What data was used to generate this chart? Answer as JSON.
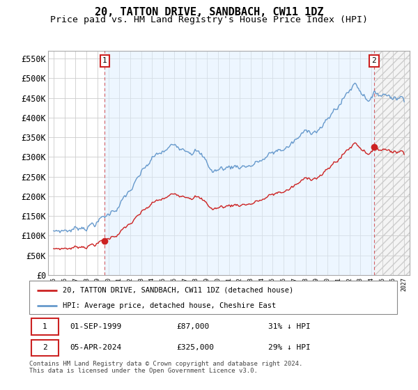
{
  "title": "20, TATTON DRIVE, SANDBACH, CW11 1DZ",
  "subtitle": "Price paid vs. HM Land Registry's House Price Index (HPI)",
  "ylabel_ticks": [
    "£0",
    "£50K",
    "£100K",
    "£150K",
    "£200K",
    "£250K",
    "£300K",
    "£350K",
    "£400K",
    "£450K",
    "£500K",
    "£550K"
  ],
  "ytick_values": [
    0,
    50000,
    100000,
    150000,
    200000,
    250000,
    300000,
    350000,
    400000,
    450000,
    500000,
    550000
  ],
  "ylim": [
    0,
    570000
  ],
  "xlim_start": 1994.5,
  "xlim_end": 2027.5,
  "xtick_years": [
    1995,
    1996,
    1997,
    1998,
    1999,
    2000,
    2001,
    2002,
    2003,
    2004,
    2005,
    2006,
    2007,
    2008,
    2009,
    2010,
    2011,
    2012,
    2013,
    2014,
    2015,
    2016,
    2017,
    2018,
    2019,
    2020,
    2021,
    2022,
    2023,
    2024,
    2025,
    2026,
    2027
  ],
  "hpi_color": "#6699cc",
  "price_color": "#cc2222",
  "sale1_year": 1999.67,
  "sale1_price": 87000,
  "sale2_year": 2024.25,
  "sale2_price": 325000,
  "legend_line1": "20, TATTON DRIVE, SANDBACH, CW11 1DZ (detached house)",
  "legend_line2": "HPI: Average price, detached house, Cheshire East",
  "table_row1": [
    "1",
    "01-SEP-1999",
    "£87,000",
    "31% ↓ HPI"
  ],
  "table_row2": [
    "2",
    "05-APR-2024",
    "£325,000",
    "29% ↓ HPI"
  ],
  "footnote": "Contains HM Land Registry data © Crown copyright and database right 2024.\nThis data is licensed under the Open Government Licence v3.0.",
  "bg_color": "#ffffff",
  "grid_color": "#cccccc",
  "title_fontsize": 11,
  "subtitle_fontsize": 9.5,
  "axis_fontsize": 8.5
}
